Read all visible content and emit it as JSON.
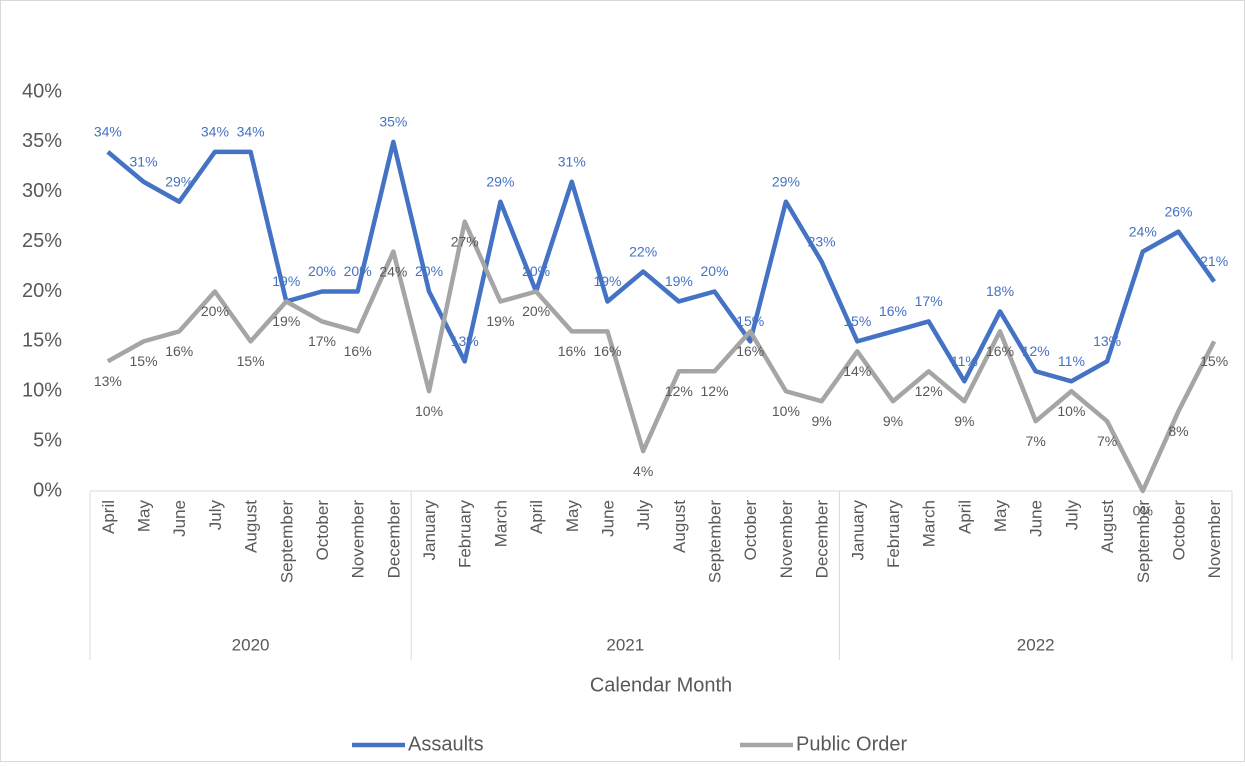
{
  "chart_data": {
    "type": "line",
    "x_label": "Calendar Month",
    "categories": [
      "April",
      "May",
      "June",
      "July",
      "August",
      "September",
      "October",
      "November",
      "December",
      "January",
      "February",
      "March",
      "April",
      "May",
      "June",
      "July",
      "August",
      "September",
      "October",
      "November",
      "December",
      "January",
      "February",
      "March",
      "April",
      "May",
      "June",
      "July",
      "August",
      "September",
      "October",
      "November"
    ],
    "category_groups": [
      {
        "name": "2020",
        "span": 9
      },
      {
        "name": "2021",
        "span": 12
      },
      {
        "name": "2022",
        "span": 11
      }
    ],
    "ylim": [
      0,
      40
    ],
    "yticks": [
      {
        "value": 0,
        "label": "0%"
      },
      {
        "value": 5,
        "label": "5%"
      },
      {
        "value": 10,
        "label": "10%"
      },
      {
        "value": 15,
        "label": "15%"
      },
      {
        "value": 20,
        "label": "20%"
      },
      {
        "value": 25,
        "label": "25%"
      },
      {
        "value": 30,
        "label": "30%"
      },
      {
        "value": 35,
        "label": "35%"
      },
      {
        "value": 40,
        "label": "40%"
      }
    ],
    "legend": "bottom",
    "series": [
      {
        "name": "Assaults",
        "color": "#4472c4",
        "label_position": "above",
        "values": [
          34,
          31,
          29,
          34,
          34,
          19,
          20,
          20,
          35,
          20,
          13,
          29,
          20,
          31,
          19,
          22,
          19,
          20,
          15,
          29,
          23,
          15,
          16,
          17,
          11,
          18,
          12,
          11,
          13,
          24,
          26,
          21
        ],
        "value_labels": [
          "34%",
          "31%",
          "29%",
          "34%",
          "34%",
          "19%",
          "20%",
          "20%",
          "35%",
          "20%",
          "13%",
          "29%",
          "20%",
          "31%",
          "19%",
          "22%",
          "19%",
          "20%",
          "15%",
          "29%",
          "23%",
          "15%",
          "16%",
          "17%",
          "11%",
          "18%",
          "12%",
          "11%",
          "13%",
          "24%",
          "26%",
          "21%"
        ]
      },
      {
        "name": "Public Order",
        "color": "#a5a5a5",
        "label_position": "below",
        "values": [
          13,
          15,
          16,
          20,
          15,
          19,
          17,
          16,
          24,
          10,
          27,
          19,
          20,
          16,
          16,
          4,
          12,
          12,
          16,
          10,
          9,
          14,
          9,
          12,
          9,
          16,
          7,
          10,
          7,
          0,
          8,
          15
        ],
        "value_labels": [
          "13%",
          "15%",
          "16%",
          "20%",
          "15%",
          "19%",
          "17%",
          "16%",
          "24%",
          "10%",
          "27%",
          "19%",
          "20%",
          "16%",
          "16%",
          "4%",
          "12%",
          "12%",
          "16%",
          "10%",
          "9%",
          "14%",
          "9%",
          "12%",
          "9%",
          "16%",
          "7%",
          "10%",
          "7%",
          "0%",
          "8%",
          "15%"
        ]
      }
    ]
  }
}
